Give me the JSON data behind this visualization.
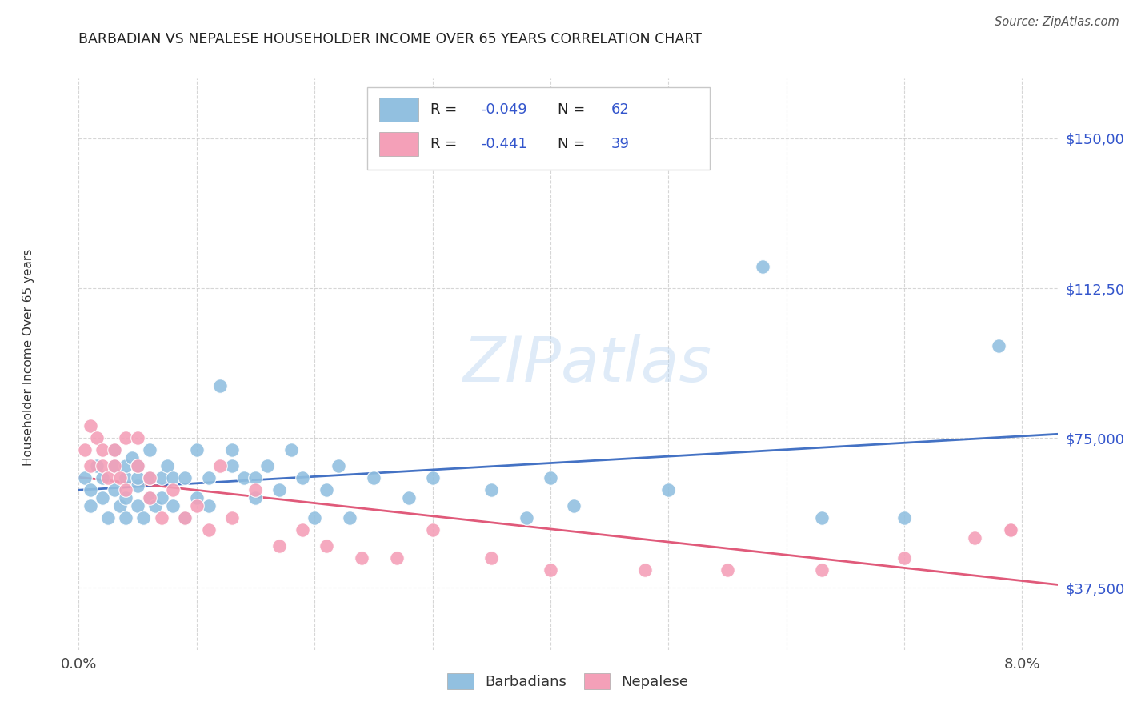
{
  "title": "BARBADIAN VS NEPALESE HOUSEHOLDER INCOME OVER 65 YEARS CORRELATION CHART",
  "source": "Source: ZipAtlas.com",
  "ylabel": "Householder Income Over 65 years",
  "ytick_values": [
    37500,
    75000,
    112500,
    150000
  ],
  "ylim": [
    22000,
    165000
  ],
  "xlim": [
    0.0,
    0.083
  ],
  "barbadian_color": "#92c0e0",
  "nepalese_color": "#f4a0b8",
  "trendline_blue": "#4472c4",
  "trendline_pink": "#e05a7a",
  "legend_text_color": "#3355cc",
  "barbadian_x": [
    0.0005,
    0.001,
    0.001,
    0.0015,
    0.002,
    0.002,
    0.0025,
    0.003,
    0.003,
    0.003,
    0.0035,
    0.004,
    0.004,
    0.004,
    0.004,
    0.0045,
    0.005,
    0.005,
    0.005,
    0.005,
    0.0055,
    0.006,
    0.006,
    0.006,
    0.0065,
    0.007,
    0.007,
    0.0075,
    0.008,
    0.008,
    0.009,
    0.009,
    0.01,
    0.01,
    0.011,
    0.011,
    0.012,
    0.013,
    0.013,
    0.014,
    0.015,
    0.015,
    0.016,
    0.017,
    0.018,
    0.019,
    0.02,
    0.021,
    0.022,
    0.023,
    0.025,
    0.028,
    0.03,
    0.035,
    0.038,
    0.04,
    0.042,
    0.05,
    0.058,
    0.063,
    0.07,
    0.078
  ],
  "barbadian_y": [
    65000,
    62000,
    58000,
    68000,
    60000,
    65000,
    55000,
    62000,
    68000,
    72000,
    58000,
    65000,
    60000,
    68000,
    55000,
    70000,
    63000,
    58000,
    65000,
    68000,
    55000,
    72000,
    65000,
    60000,
    58000,
    65000,
    60000,
    68000,
    65000,
    58000,
    55000,
    65000,
    72000,
    60000,
    58000,
    65000,
    88000,
    68000,
    72000,
    65000,
    65000,
    60000,
    68000,
    62000,
    72000,
    65000,
    55000,
    62000,
    68000,
    55000,
    65000,
    60000,
    65000,
    62000,
    55000,
    65000,
    58000,
    62000,
    118000,
    55000,
    55000,
    98000
  ],
  "nepalese_x": [
    0.0005,
    0.001,
    0.001,
    0.0015,
    0.002,
    0.002,
    0.0025,
    0.003,
    0.003,
    0.0035,
    0.004,
    0.004,
    0.005,
    0.005,
    0.006,
    0.006,
    0.007,
    0.008,
    0.009,
    0.01,
    0.011,
    0.012,
    0.013,
    0.015,
    0.017,
    0.019,
    0.021,
    0.024,
    0.027,
    0.03,
    0.035,
    0.04,
    0.048,
    0.055,
    0.063,
    0.07,
    0.076,
    0.079,
    0.079
  ],
  "nepalese_y": [
    72000,
    68000,
    78000,
    75000,
    72000,
    68000,
    65000,
    72000,
    68000,
    65000,
    75000,
    62000,
    75000,
    68000,
    60000,
    65000,
    55000,
    62000,
    55000,
    58000,
    52000,
    68000,
    55000,
    62000,
    48000,
    52000,
    48000,
    45000,
    45000,
    52000,
    45000,
    42000,
    42000,
    42000,
    42000,
    45000,
    50000,
    52000,
    52000
  ]
}
